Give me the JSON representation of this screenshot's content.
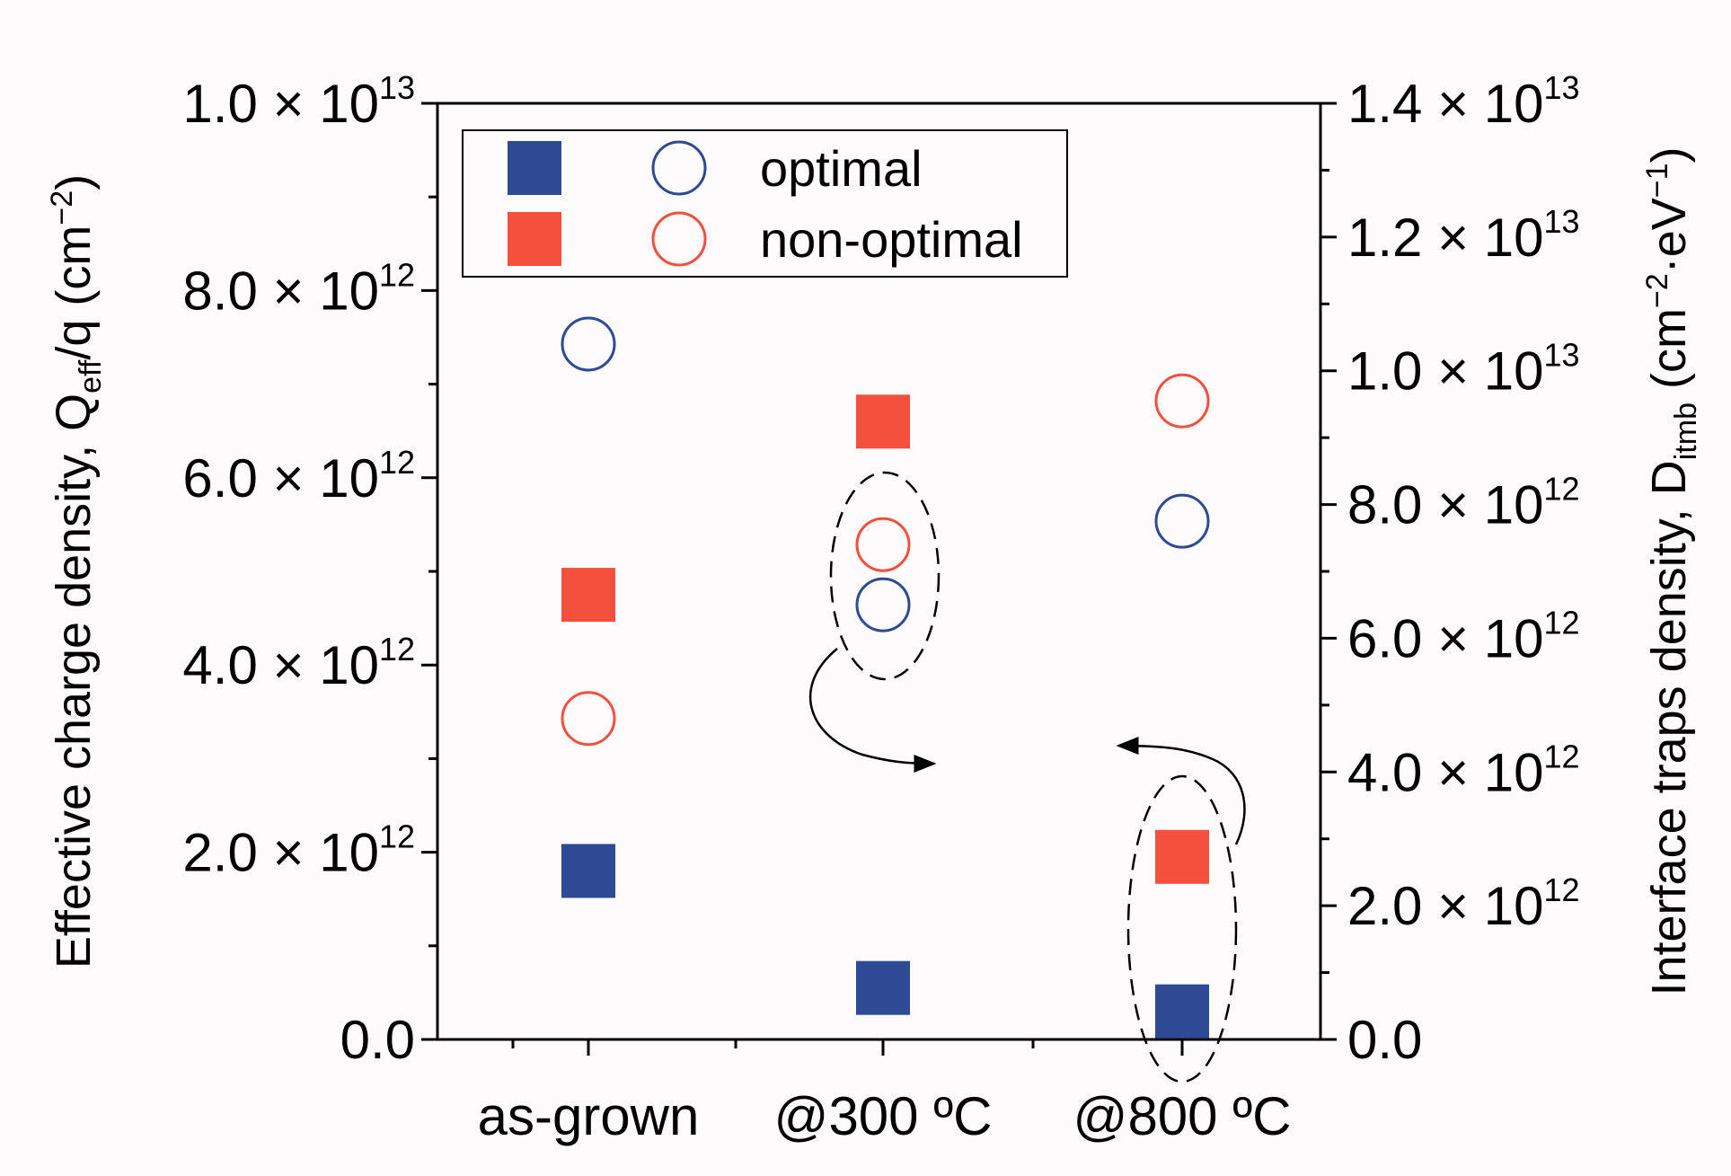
{
  "chart_data": {
    "type": "scatter",
    "categories": [
      "as-grown",
      "@300 ºC",
      "@800 ºC"
    ],
    "left_axis": {
      "label_main": "Effective charge density,  Q",
      "label_sub": "eff",
      "label_tail": "/q (cm",
      "label_exp": "−2",
      "label_close": ")",
      "ylim": [
        0,
        10000000000000.0
      ],
      "ticks": [
        {
          "mant": "0.0",
          "exp": ""
        },
        {
          "mant": "2.0 × 10",
          "exp": "12"
        },
        {
          "mant": "4.0 × 10",
          "exp": "12"
        },
        {
          "mant": "6.0 × 10",
          "exp": "12"
        },
        {
          "mant": "8.0 × 10",
          "exp": "12"
        },
        {
          "mant": "1.0 × 10",
          "exp": "13"
        }
      ]
    },
    "right_axis": {
      "label_main": "Interface traps density,  D",
      "label_sub": "itmb",
      "label_tail": " (cm",
      "label_exp1": "−2",
      "label_mid": "·eV",
      "label_exp2": "−1",
      "label_close": ")",
      "ylim": [
        0,
        14000000000000.0
      ],
      "ticks": [
        {
          "mant": "0.0",
          "exp": ""
        },
        {
          "mant": "2.0 × 10",
          "exp": "12"
        },
        {
          "mant": "4.0 × 10",
          "exp": "12"
        },
        {
          "mant": "6.0 × 10",
          "exp": "12"
        },
        {
          "mant": "8.0 × 10",
          "exp": "12"
        },
        {
          "mant": "1.0 × 10",
          "exp": "13"
        },
        {
          "mant": "1.2 × 10",
          "exp": "13"
        },
        {
          "mant": "1.4 × 10",
          "exp": "13"
        }
      ]
    },
    "series": [
      {
        "name": "optimal",
        "marker": "square",
        "axis": "left",
        "color": "#2e4a94",
        "values": [
          1800000000000.0,
          550000000000.0,
          300000000000.0
        ]
      },
      {
        "name": "non-optimal",
        "marker": "square",
        "axis": "left",
        "color": "#f5503e",
        "values": [
          4750000000000.0,
          6600000000000.0,
          1950000000000.0
        ]
      },
      {
        "name": "optimal",
        "marker": "circle",
        "axis": "right",
        "color": "#2e4a94",
        "values": [
          10400000000000.0,
          6500000000000.0,
          7750000000000.0
        ]
      },
      {
        "name": "non-optimal",
        "marker": "circle",
        "axis": "right",
        "color": "#f5503e",
        "values": [
          4800000000000.0,
          7400000000000.0,
          9550000000000.0
        ]
      }
    ],
    "legend": [
      {
        "label": "optimal",
        "color": "#2e4a94"
      },
      {
        "label": "non-optimal",
        "color": "#f5503e"
      }
    ],
    "legend_position": "top-left"
  }
}
